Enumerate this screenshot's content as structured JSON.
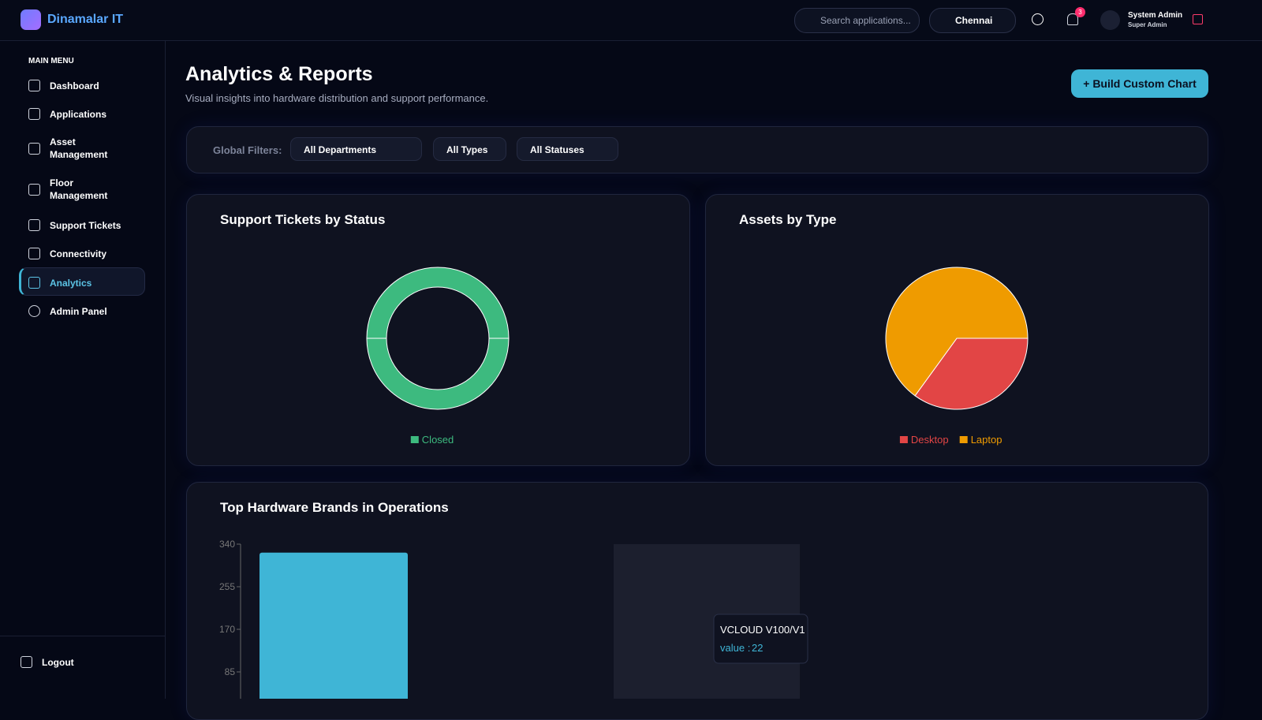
{
  "header": {
    "brand": "Dinamalar IT",
    "search_placeholder": "Search applications...",
    "location": "Chennai",
    "notifications": 3,
    "user_name": "System Admin",
    "user_role": "Super Admin"
  },
  "sidebar": {
    "section": "MAIN MENU",
    "items": [
      "Dashboard",
      "Applications",
      "Asset Management",
      "Floor Management",
      "Support Tickets",
      "Connectivity",
      "Analytics",
      "Admin Panel"
    ],
    "logout": "Logout"
  },
  "page": {
    "title": "Analytics & Reports",
    "subtitle": "Visual insights into hardware distribution and support performance.",
    "action": "Build Custom Chart",
    "filters_label": "Global Filters:",
    "filters": [
      "All Departments",
      "All Types",
      "All Statuses"
    ]
  },
  "chart_data": [
    {
      "type": "donut",
      "title": "Support Tickets by Status",
      "categories": [
        "Closed"
      ],
      "values": [
        100
      ],
      "colors": [
        "#3dba7f"
      ]
    },
    {
      "type": "pie",
      "title": "Assets by Type",
      "categories": [
        "Desktop",
        "Laptop"
      ],
      "values": [
        35,
        65
      ],
      "colors": [
        "#e24545",
        "#ef9b00"
      ]
    },
    {
      "type": "bar",
      "title": "Top Hardware Brands in Operations",
      "categories": [
        null,
        null,
        "VCLOUD V100/V1",
        null,
        null
      ],
      "values": [
        323,
        null,
        22,
        null,
        null
      ],
      "color": "#3fb5d6",
      "ylim": [
        0,
        340
      ],
      "yticks": [
        85,
        170,
        255,
        340
      ],
      "tooltip_key": "value :"
    }
  ]
}
